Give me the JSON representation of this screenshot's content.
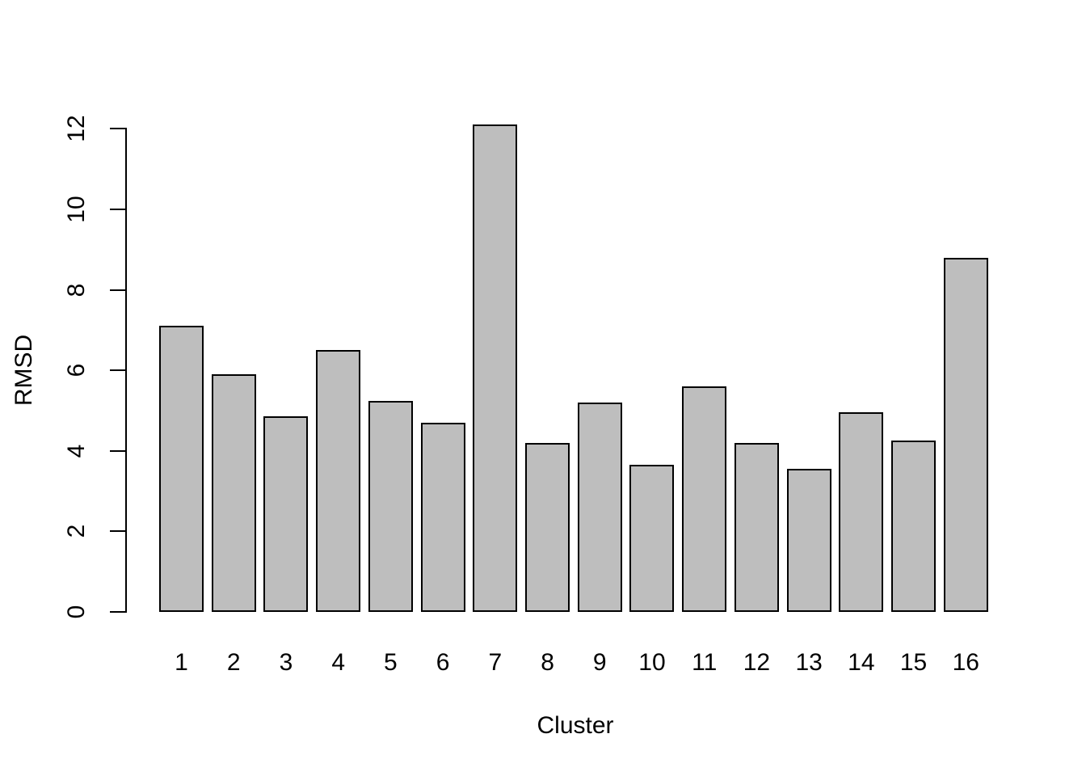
{
  "chart_data": {
    "type": "bar",
    "title": "",
    "xlabel": "Cluster",
    "ylabel": "RMSD",
    "categories": [
      "1",
      "2",
      "3",
      "4",
      "5",
      "6",
      "7",
      "8",
      "9",
      "10",
      "11",
      "12",
      "13",
      "14",
      "15",
      "16"
    ],
    "values": [
      7.1,
      5.9,
      4.85,
      6.5,
      5.25,
      4.7,
      12.1,
      4.2,
      5.2,
      3.65,
      5.6,
      4.2,
      3.55,
      4.95,
      4.25,
      8.8
    ],
    "yticks": [
      0,
      2,
      4,
      6,
      8,
      10,
      12
    ],
    "ylim": [
      0,
      12.1
    ],
    "grid": false,
    "legend": null,
    "bar_fill_color": "#bebebe",
    "bar_border_color": "#000000",
    "axis_color": "#000000",
    "text_color": "#000000",
    "background_color": "#ffffff"
  }
}
